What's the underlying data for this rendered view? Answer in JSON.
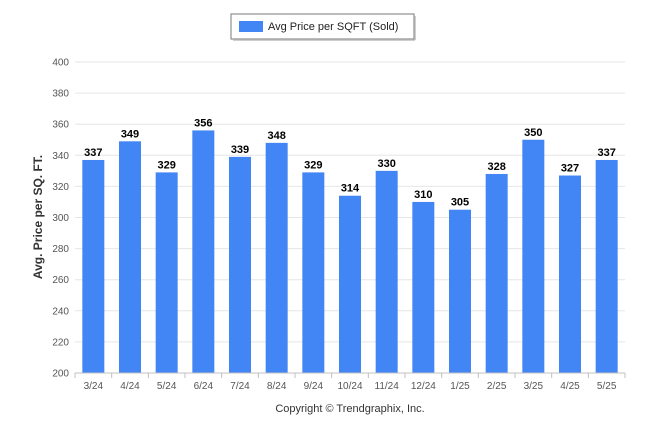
{
  "colors": {
    "bar": "#4285f4",
    "grid": "#e6e6e6",
    "axis": "#c0c0c0"
  },
  "legend": {
    "label": "Avg Price per SQFT (Sold)",
    "position": "top-center"
  },
  "copyright": "Copyright © Trendgraphix, Inc.",
  "chart_data": {
    "type": "bar",
    "title": "",
    "xlabel": "",
    "ylabel": "Avg. Price per SQ. FT.",
    "ylim": [
      200,
      400
    ],
    "yticks": [
      200,
      220,
      240,
      260,
      280,
      300,
      320,
      340,
      360,
      380,
      400
    ],
    "grid": true,
    "categories": [
      "3/24",
      "4/24",
      "5/24",
      "6/24",
      "7/24",
      "8/24",
      "9/24",
      "10/24",
      "11/24",
      "12/24",
      "1/25",
      "2/25",
      "3/25",
      "4/25",
      "5/25"
    ],
    "series": [
      {
        "name": "Avg Price per SQFT (Sold)",
        "values": [
          337,
          349,
          329,
          356,
          339,
          348,
          329,
          314,
          330,
          310,
          305,
          328,
          350,
          327,
          337
        ]
      }
    ]
  }
}
